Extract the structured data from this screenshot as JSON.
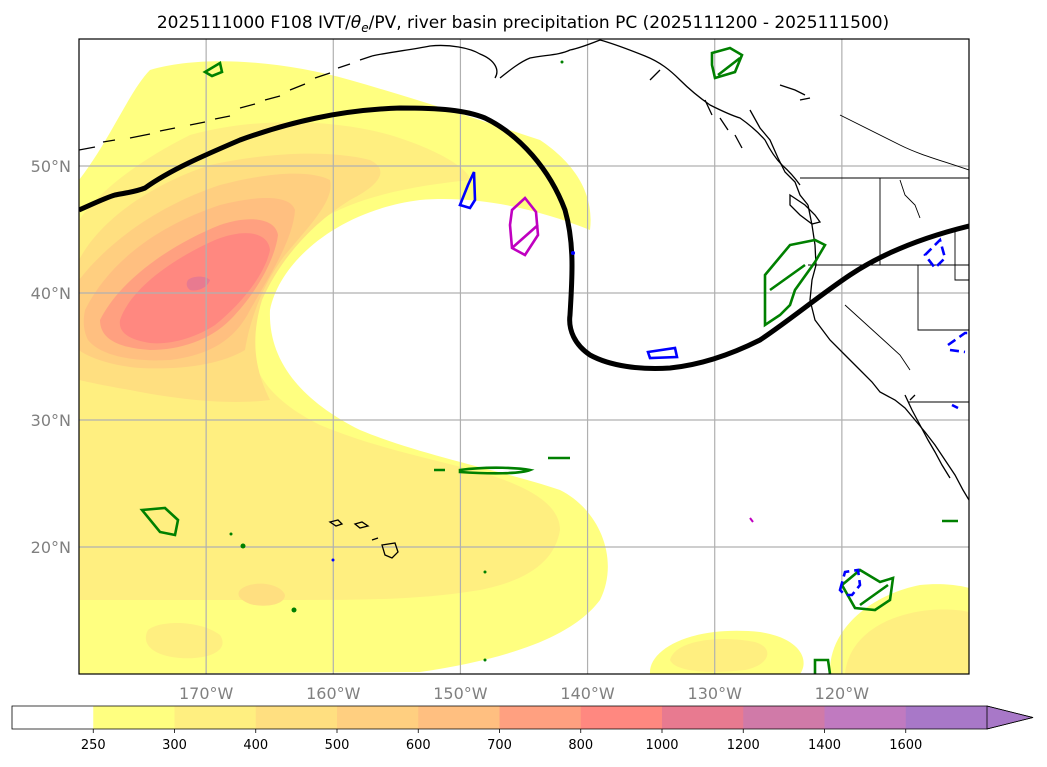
{
  "title": "2025111000 F108 IVT/θe/PV, river basin precipitation PC (2025111200 - 2025111500)",
  "title_parts": {
    "prefix": "2025111000 F108 IVT/",
    "theta": "θ",
    "theta_sub": "e",
    "suffix": "/PV, river basin precipitation PC (2025111200 - 2025111500)"
  },
  "map": {
    "lon_range": [
      -180,
      -110
    ],
    "lat_range": [
      10,
      60
    ],
    "lon_ticks": [
      {
        "value": -170,
        "label": "170°W"
      },
      {
        "value": -160,
        "label": "160°W"
      },
      {
        "value": -150,
        "label": "150°W"
      },
      {
        "value": -140,
        "label": "140°W"
      },
      {
        "value": -130,
        "label": "130°W"
      },
      {
        "value": -120,
        "label": "120°W"
      }
    ],
    "lat_ticks": [
      {
        "value": 50,
        "label": "50°N"
      },
      {
        "value": 40,
        "label": "40°N"
      },
      {
        "value": 30,
        "label": "30°N"
      },
      {
        "value": 20,
        "label": "20°N"
      }
    ]
  },
  "colorbar": {
    "levels": [
      250,
      300,
      400,
      500,
      600,
      700,
      800,
      1000,
      1200,
      1400,
      1600
    ],
    "colors": [
      "#ffffff",
      "#ffff80",
      "#ffef80",
      "#ffdf80",
      "#ffcf80",
      "#ffbf80",
      "#ffa080",
      "#ff8880",
      "#e87a90",
      "#d07aa8",
      "#c07ac0",
      "#a878c8"
    ],
    "extend": "max"
  },
  "colors": {
    "thetae_contour": "#000000",
    "pv_contour_green": "#008000",
    "pv_contour_blue": "#0000ff",
    "pv_contour_magenta": "#c000c0",
    "coastline": "#000000",
    "grid": "#b0b0b0"
  }
}
